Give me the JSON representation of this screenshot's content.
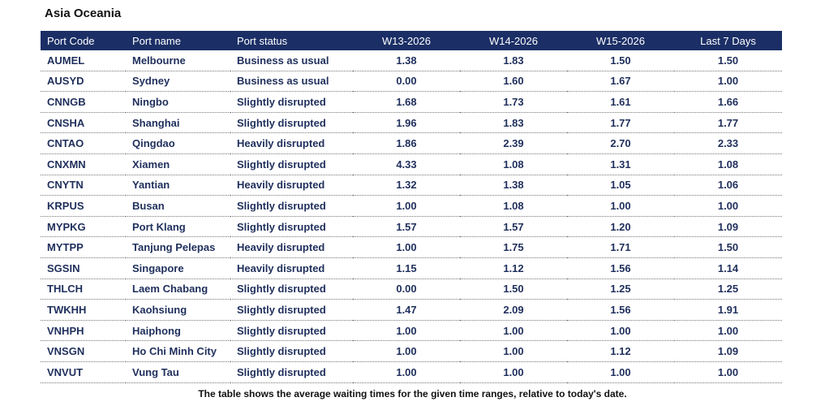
{
  "title": "Asia Oceania",
  "table": {
    "headers": [
      "Port Code",
      "Port name",
      "Port status",
      "W13-2026",
      "W14-2026",
      "W15-2026",
      "Last 7 Days"
    ],
    "rows": [
      [
        "AUMEL",
        "Melbourne",
        "Business as usual",
        "1.38",
        "1.83",
        "1.50",
        "1.50"
      ],
      [
        "AUSYD",
        "Sydney",
        "Business as usual",
        "0.00",
        "1.60",
        "1.67",
        "1.00"
      ],
      [
        "CNNGB",
        "Ningbo",
        "Slightly disrupted",
        "1.68",
        "1.73",
        "1.61",
        "1.66"
      ],
      [
        "CNSHA",
        "Shanghai",
        "Slightly disrupted",
        "1.96",
        "1.83",
        "1.77",
        "1.77"
      ],
      [
        "CNTAO",
        "Qingdao",
        "Heavily disrupted",
        "1.86",
        "2.39",
        "2.70",
        "2.33"
      ],
      [
        "CNXMN",
        "Xiamen",
        "Slightly disrupted",
        "4.33",
        "1.08",
        "1.31",
        "1.08"
      ],
      [
        "CNYTN",
        "Yantian",
        "Heavily disrupted",
        "1.32",
        "1.38",
        "1.05",
        "1.06"
      ],
      [
        "KRPUS",
        "Busan",
        "Slightly disrupted",
        "1.00",
        "1.08",
        "1.00",
        "1.00"
      ],
      [
        "MYPKG",
        "Port Klang",
        "Slightly disrupted",
        "1.57",
        "1.57",
        "1.20",
        "1.09"
      ],
      [
        "MYTPP",
        "Tanjung Pelepas",
        "Heavily disrupted",
        "1.00",
        "1.75",
        "1.71",
        "1.50"
      ],
      [
        "SGSIN",
        "Singapore",
        "Heavily disrupted",
        "1.15",
        "1.12",
        "1.56",
        "1.14"
      ],
      [
        "THLCH",
        "Laem Chabang",
        "Slightly disrupted",
        "0.00",
        "1.50",
        "1.25",
        "1.25"
      ],
      [
        "TWKHH",
        "Kaohsiung",
        "Slightly disrupted",
        "1.47",
        "2.09",
        "1.56",
        "1.91"
      ],
      [
        "VNHPH",
        "Haiphong",
        "Slightly disrupted",
        "1.00",
        "1.00",
        "1.00",
        "1.00"
      ],
      [
        "VNSGN",
        "Ho Chi Minh City",
        "Slightly disrupted",
        "1.00",
        "1.00",
        "1.12",
        "1.09"
      ],
      [
        "VNVUT",
        "Vung Tau",
        "Slightly disrupted",
        "1.00",
        "1.00",
        "1.00",
        "1.00"
      ]
    ]
  },
  "caption": "The table shows the average waiting times for the given time ranges, relative to today's date."
}
